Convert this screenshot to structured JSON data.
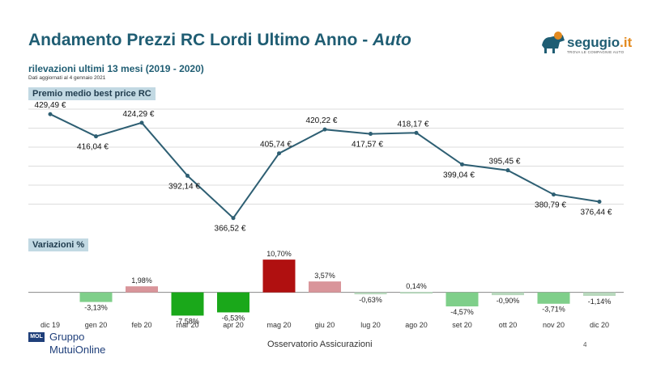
{
  "header": {
    "title_main": "Andamento Prezzi RC Lordi Ultimo Anno - ",
    "title_sub": "Auto",
    "subtitle": "rilevazioni ultimi 13 mesi (2019 -  2020)",
    "updated": "Dati aggiornati al  4 gennaio 2021"
  },
  "logo": {
    "brand": "segugio",
    "tld": ".it",
    "tagline": "TROVA LE COMPAGNIE AUTO"
  },
  "footer": {
    "group_line1": "Gruppo",
    "group_line2": "MutuiOnline",
    "group_badge": "MOL",
    "center": "Osservatorio Assicurazioni",
    "page": "4"
  },
  "colors": {
    "line": "#2e5f73",
    "positive_dark": "#b01010",
    "positive_light": "#d9959a",
    "negative_dark": "#1aa81a",
    "negative_light": "#7fcf8a",
    "neutral": "#b8d9bd"
  },
  "chart_data": [
    {
      "type": "line",
      "title": "Premio medio best price RC",
      "categories": [
        "dic 19",
        "gen 20",
        "feb 20",
        "mar 20",
        "apr 20",
        "mag 20",
        "giu 20",
        "lug 20",
        "ago 20",
        "set 20",
        "ott 20",
        "nov 20",
        "dic 20"
      ],
      "values": [
        429.49,
        416.04,
        424.29,
        392.14,
        366.52,
        405.74,
        420.22,
        417.57,
        418.17,
        399.04,
        395.45,
        380.79,
        376.44
      ],
      "labels": [
        "429,49 €",
        "416,04 €",
        "424,29 €",
        "392,14 €",
        "366,52 €",
        "405,74 €",
        "420,22 €",
        "417,57 €",
        "418,17 €",
        "399,04 €",
        "395,45 €",
        "380,79 €",
        "376,44 €"
      ],
      "ylim": [
        360,
        435
      ],
      "grid": true
    },
    {
      "type": "bar",
      "title": "Variazioni %",
      "categories": [
        "dic 19",
        "gen 20",
        "feb 20",
        "mar 20",
        "apr 20",
        "mag 20",
        "giu 20",
        "lug 20",
        "ago 20",
        "set 20",
        "ott 20",
        "nov 20",
        "dic 20"
      ],
      "values": [
        null,
        -3.13,
        1.98,
        -7.58,
        -6.53,
        10.7,
        3.57,
        -0.63,
        0.14,
        -4.57,
        -0.9,
        -3.71,
        -1.14
      ],
      "labels": [
        "",
        "-3,13%",
        "1,98%",
        "-7,58%",
        "-6,53%",
        "10,70%",
        "3,57%",
        "-0,63%",
        "0,14%",
        "-4,57%",
        "-0,90%",
        "-3,71%",
        "-1,14%"
      ],
      "ylim": [
        -8,
        11
      ]
    }
  ]
}
